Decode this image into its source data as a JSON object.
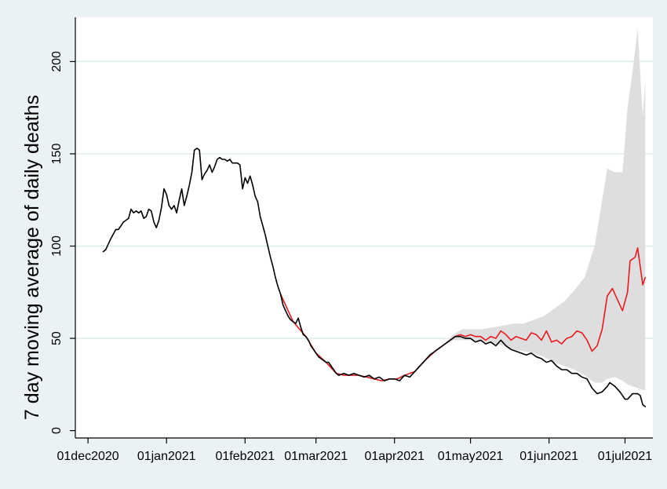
{
  "chart_data": {
    "type": "line",
    "title": "",
    "xlabel": "",
    "ylabel": "7 day moving average of daily deaths",
    "x_ticks": [
      "01dec2020",
      "01jan2021",
      "01feb2021",
      "01mar2021",
      "01apr2021",
      "01may2021",
      "01jun2021",
      "01jul2021"
    ],
    "y_ticks": [
      0,
      50,
      100,
      150,
      200
    ],
    "xlim": [
      "2020-11-26",
      "2021-07-12"
    ],
    "ylim": [
      -4,
      224
    ],
    "grid": "horizontal",
    "legend": "none",
    "colors": {
      "background": "#eaf2f3",
      "plot_area": "#ffffff",
      "grid": "#dbe8ec",
      "observed": "#000000",
      "predicted": "#e8191f",
      "band": "#dedede"
    },
    "series": [
      {
        "role": "observed",
        "points": [
          [
            "2020-12-07",
            97
          ],
          [
            "2020-12-08",
            98
          ],
          [
            "2020-12-10",
            104
          ],
          [
            "2020-12-12",
            109
          ],
          [
            "2020-12-13",
            109
          ],
          [
            "2020-12-15",
            113
          ],
          [
            "2020-12-16",
            114
          ],
          [
            "2020-12-17",
            115
          ],
          [
            "2020-12-18",
            120
          ],
          [
            "2020-12-19",
            118
          ],
          [
            "2020-12-20",
            119
          ],
          [
            "2020-12-21",
            118
          ],
          [
            "2020-12-22",
            119
          ],
          [
            "2020-12-23",
            115
          ],
          [
            "2020-12-24",
            116
          ],
          [
            "2020-12-25",
            120
          ],
          [
            "2020-12-26",
            119
          ],
          [
            "2020-12-27",
            113
          ],
          [
            "2020-12-28",
            110
          ],
          [
            "2020-12-29",
            114
          ],
          [
            "2020-12-30",
            121
          ],
          [
            "2020-12-31",
            131
          ],
          [
            "2021-01-01",
            128
          ],
          [
            "2021-01-02",
            122
          ],
          [
            "2021-01-03",
            120
          ],
          [
            "2021-01-04",
            122
          ],
          [
            "2021-01-05",
            118
          ],
          [
            "2021-01-06",
            125
          ],
          [
            "2021-01-07",
            131
          ],
          [
            "2021-01-08",
            122
          ],
          [
            "2021-01-09",
            127
          ],
          [
            "2021-01-10",
            133
          ],
          [
            "2021-01-11",
            140
          ],
          [
            "2021-01-12",
            152
          ],
          [
            "2021-01-13",
            153
          ],
          [
            "2021-01-14",
            152
          ],
          [
            "2021-01-15",
            136
          ],
          [
            "2021-01-16",
            139
          ],
          [
            "2021-01-17",
            141
          ],
          [
            "2021-01-18",
            144
          ],
          [
            "2021-01-19",
            140
          ],
          [
            "2021-01-20",
            143
          ],
          [
            "2021-01-21",
            147
          ],
          [
            "2021-01-22",
            148
          ],
          [
            "2021-01-23",
            147
          ],
          [
            "2021-01-24",
            147
          ],
          [
            "2021-01-25",
            146
          ],
          [
            "2021-01-26",
            147
          ],
          [
            "2021-01-27",
            145
          ],
          [
            "2021-01-28",
            145
          ],
          [
            "2021-01-29",
            145
          ],
          [
            "2021-01-30",
            144
          ],
          [
            "2021-01-31",
            131
          ],
          [
            "2021-02-01",
            137
          ],
          [
            "2021-02-02",
            134
          ],
          [
            "2021-02-03",
            138
          ],
          [
            "2021-02-04",
            133
          ],
          [
            "2021-02-05",
            127
          ],
          [
            "2021-02-06",
            124
          ],
          [
            "2021-02-07",
            116
          ],
          [
            "2021-02-08",
            111
          ],
          [
            "2021-02-09",
            106
          ],
          [
            "2021-02-10",
            100
          ],
          [
            "2021-02-11",
            94
          ],
          [
            "2021-02-12",
            89
          ],
          [
            "2021-02-13",
            83
          ],
          [
            "2021-02-14",
            78
          ],
          [
            "2021-02-15",
            74
          ],
          [
            "2021-02-16",
            68
          ],
          [
            "2021-02-17",
            65
          ],
          [
            "2021-02-18",
            62
          ],
          [
            "2021-02-19",
            60
          ],
          [
            "2021-02-20",
            59
          ],
          [
            "2021-02-21",
            58
          ],
          [
            "2021-02-22",
            61
          ],
          [
            "2021-02-23",
            56
          ],
          [
            "2021-02-24",
            52
          ],
          [
            "2021-02-25",
            51
          ],
          [
            "2021-02-26",
            49
          ],
          [
            "2021-02-27",
            46
          ],
          [
            "2021-02-28",
            44
          ],
          [
            "2021-03-01",
            42
          ],
          [
            "2021-03-02",
            40
          ],
          [
            "2021-03-03",
            39
          ],
          [
            "2021-03-04",
            38
          ],
          [
            "2021-03-05",
            37
          ],
          [
            "2021-03-06",
            37
          ],
          [
            "2021-03-07",
            35
          ],
          [
            "2021-03-08",
            33
          ],
          [
            "2021-03-09",
            31
          ],
          [
            "2021-03-10",
            30
          ],
          [
            "2021-03-12",
            31
          ],
          [
            "2021-03-14",
            30
          ],
          [
            "2021-03-16",
            31
          ],
          [
            "2021-03-18",
            30
          ],
          [
            "2021-03-20",
            29
          ],
          [
            "2021-03-22",
            30
          ],
          [
            "2021-03-24",
            28
          ],
          [
            "2021-03-26",
            29
          ],
          [
            "2021-03-28",
            27
          ],
          [
            "2021-03-30",
            28
          ],
          [
            "2021-04-01",
            28
          ],
          [
            "2021-04-03",
            27
          ],
          [
            "2021-04-05",
            30
          ],
          [
            "2021-04-07",
            29
          ],
          [
            "2021-04-09",
            32
          ],
          [
            "2021-04-11",
            35
          ],
          [
            "2021-04-13",
            38
          ],
          [
            "2021-04-15",
            41
          ],
          [
            "2021-04-17",
            43
          ],
          [
            "2021-04-19",
            45
          ],
          [
            "2021-04-21",
            47
          ],
          [
            "2021-04-23",
            49
          ],
          [
            "2021-04-25",
            51
          ],
          [
            "2021-04-27",
            51
          ],
          [
            "2021-04-29",
            50
          ],
          [
            "2021-05-01",
            50
          ],
          [
            "2021-05-03",
            48
          ],
          [
            "2021-05-05",
            49
          ],
          [
            "2021-05-07",
            47
          ],
          [
            "2021-05-09",
            48
          ],
          [
            "2021-05-11",
            46
          ],
          [
            "2021-05-13",
            49
          ],
          [
            "2021-05-15",
            46
          ],
          [
            "2021-05-17",
            44
          ],
          [
            "2021-05-19",
            43
          ],
          [
            "2021-05-21",
            42
          ],
          [
            "2021-05-23",
            41
          ],
          [
            "2021-05-25",
            42
          ],
          [
            "2021-05-27",
            40
          ],
          [
            "2021-05-29",
            39
          ],
          [
            "2021-05-31",
            37
          ],
          [
            "2021-06-02",
            38
          ],
          [
            "2021-06-04",
            35
          ],
          [
            "2021-06-06",
            33
          ],
          [
            "2021-06-08",
            33
          ],
          [
            "2021-06-10",
            31
          ],
          [
            "2021-06-12",
            31
          ],
          [
            "2021-06-14",
            29
          ],
          [
            "2021-06-16",
            28
          ],
          [
            "2021-06-18",
            23
          ],
          [
            "2021-06-20",
            20
          ],
          [
            "2021-06-22",
            21
          ],
          [
            "2021-06-24",
            24
          ],
          [
            "2021-06-25",
            26
          ],
          [
            "2021-06-27",
            24
          ],
          [
            "2021-06-29",
            21
          ],
          [
            "2021-07-01",
            17
          ],
          [
            "2021-07-02",
            17
          ],
          [
            "2021-07-04",
            20
          ],
          [
            "2021-07-06",
            20
          ],
          [
            "2021-07-07",
            19
          ],
          [
            "2021-07-08",
            14
          ],
          [
            "2021-07-09",
            13
          ]
        ]
      },
      {
        "role": "predicted",
        "points": [
          [
            "2021-02-15",
            74
          ],
          [
            "2021-02-20",
            59
          ],
          [
            "2021-02-25",
            51
          ],
          [
            "2021-03-01",
            42
          ],
          [
            "2021-03-05",
            37
          ],
          [
            "2021-03-09",
            31
          ],
          [
            "2021-03-12",
            30
          ],
          [
            "2021-03-15",
            30
          ],
          [
            "2021-03-18",
            30
          ],
          [
            "2021-03-21",
            29
          ],
          [
            "2021-03-24",
            28
          ],
          [
            "2021-03-27",
            27
          ],
          [
            "2021-03-30",
            28
          ],
          [
            "2021-04-02",
            28
          ],
          [
            "2021-04-05",
            30
          ],
          [
            "2021-04-09",
            32
          ],
          [
            "2021-04-13",
            38
          ],
          [
            "2021-04-17",
            43
          ],
          [
            "2021-04-21",
            47
          ],
          [
            "2021-04-23",
            49
          ],
          [
            "2021-04-25",
            51
          ],
          [
            "2021-04-27",
            52
          ],
          [
            "2021-04-29",
            51
          ],
          [
            "2021-05-01",
            52
          ],
          [
            "2021-05-03",
            51
          ],
          [
            "2021-05-05",
            51
          ],
          [
            "2021-05-07",
            49
          ],
          [
            "2021-05-09",
            51
          ],
          [
            "2021-05-11",
            50
          ],
          [
            "2021-05-13",
            54
          ],
          [
            "2021-05-15",
            52
          ],
          [
            "2021-05-17",
            49
          ],
          [
            "2021-05-19",
            51
          ],
          [
            "2021-05-21",
            50
          ],
          [
            "2021-05-23",
            49
          ],
          [
            "2021-05-25",
            53
          ],
          [
            "2021-05-27",
            52
          ],
          [
            "2021-05-29",
            49
          ],
          [
            "2021-05-31",
            54
          ],
          [
            "2021-06-02",
            48
          ],
          [
            "2021-06-04",
            49
          ],
          [
            "2021-06-06",
            47
          ],
          [
            "2021-06-08",
            50
          ],
          [
            "2021-06-10",
            51
          ],
          [
            "2021-06-12",
            54
          ],
          [
            "2021-06-14",
            53
          ],
          [
            "2021-06-16",
            49
          ],
          [
            "2021-06-18",
            43
          ],
          [
            "2021-06-20",
            46
          ],
          [
            "2021-06-22",
            55
          ],
          [
            "2021-06-24",
            73
          ],
          [
            "2021-06-26",
            77
          ],
          [
            "2021-06-28",
            71
          ],
          [
            "2021-06-30",
            65
          ],
          [
            "2021-07-02",
            75
          ],
          [
            "2021-07-03",
            92
          ],
          [
            "2021-07-05",
            94
          ],
          [
            "2021-07-06",
            99
          ],
          [
            "2021-07-08",
            79
          ],
          [
            "2021-07-09",
            83
          ]
        ]
      }
    ],
    "band": {
      "role": "confidence interval",
      "points": [
        [
          "2021-04-20",
          46,
          46
        ],
        [
          "2021-04-24",
          49,
          52
        ],
        [
          "2021-04-28",
          49,
          55
        ],
        [
          "2021-05-02",
          49,
          55
        ],
        [
          "2021-05-06",
          48,
          55
        ],
        [
          "2021-05-10",
          47,
          56
        ],
        [
          "2021-05-14",
          46,
          57
        ],
        [
          "2021-05-18",
          44,
          58
        ],
        [
          "2021-05-22",
          43,
          58
        ],
        [
          "2021-05-26",
          42,
          60
        ],
        [
          "2021-05-30",
          40,
          62
        ],
        [
          "2021-06-03",
          37,
          66
        ],
        [
          "2021-06-07",
          35,
          70
        ],
        [
          "2021-06-11",
          33,
          76
        ],
        [
          "2021-06-15",
          30,
          83
        ],
        [
          "2021-06-19",
          26,
          100
        ],
        [
          "2021-06-22",
          26,
          125
        ],
        [
          "2021-06-24",
          28,
          142
        ],
        [
          "2021-06-27",
          29,
          140
        ],
        [
          "2021-06-30",
          27,
          140
        ],
        [
          "2021-07-02",
          25,
          175
        ],
        [
          "2021-07-04",
          24,
          195
        ],
        [
          "2021-07-06",
          23,
          218
        ],
        [
          "2021-07-08",
          22,
          170
        ],
        [
          "2021-07-09",
          22,
          190
        ]
      ]
    }
  }
}
